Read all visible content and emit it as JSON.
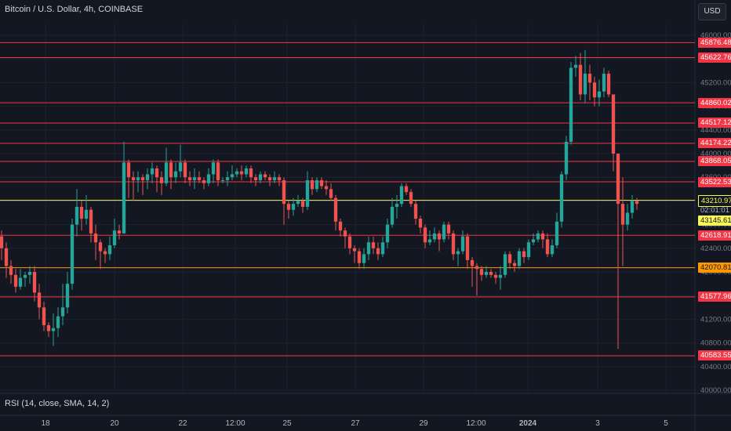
{
  "header": {
    "title": "Bitcoin / U.S. Dollar, 4h, COINBASE"
  },
  "currency_button": "USD",
  "rsi": {
    "label": "RSI (14, close, SMA, 14, 2)"
  },
  "colors": {
    "bg": "#131722",
    "up": "#26a69a",
    "down": "#ef5350",
    "hline": "#f23645",
    "yellow": "#f7f757",
    "orange": "#ff9800"
  },
  "chart_data": {
    "type": "candlestick",
    "title": "Bitcoin / U.S. Dollar, 4h, COINBASE",
    "ylim": [
      40000,
      46200
    ],
    "y_ticks": [
      "46000.00",
      "45600.00",
      "45200.00",
      "44800.00",
      "44400.00",
      "44000.00",
      "43600.00",
      "43200.00",
      "42800.00",
      "42400.00",
      "42000.00",
      "41600.00",
      "41200.00",
      "40800.00",
      "40400.00",
      "40000.00"
    ],
    "x_ticks": [
      "18",
      "20",
      "22",
      "12:00",
      "25",
      "27",
      "29",
      "12:00",
      "2024",
      "3",
      "5"
    ],
    "horizontal_levels": [
      {
        "price": 45876.48,
        "label": "45876.48",
        "style": "red"
      },
      {
        "price": 45622.76,
        "label": "45622.76",
        "style": "red"
      },
      {
        "price": 44860.02,
        "label": "44860.02",
        "style": "red"
      },
      {
        "price": 44517.12,
        "label": "44517.12",
        "style": "red"
      },
      {
        "price": 44174.22,
        "label": "44174.22",
        "style": "red"
      },
      {
        "price": 43868.05,
        "label": "43868.05",
        "style": "red"
      },
      {
        "price": 43522.53,
        "label": "43522.53",
        "style": "red"
      },
      {
        "price": 43210.97,
        "label": "43210.97",
        "style": "yellow"
      },
      {
        "price": 42618.91,
        "label": "42618.91",
        "style": "red"
      },
      {
        "price": 42070.81,
        "label": "42070.81",
        "style": "orange"
      },
      {
        "price": 41577.96,
        "label": "41577.96",
        "style": "red"
      },
      {
        "price": 40583.55,
        "label": "40583.55",
        "style": "red"
      }
    ],
    "current_price": {
      "label": "43145.61",
      "countdown": "02:01:01"
    },
    "candles": [
      [
        42600,
        42400,
        42700,
        42200
      ],
      [
        42400,
        42100,
        42500,
        41900
      ],
      [
        42100,
        41950,
        42200,
        41800
      ],
      [
        41950,
        41750,
        42050,
        41650
      ],
      [
        41750,
        41900,
        42050,
        41700
      ],
      [
        41900,
        41950,
        42000,
        41750
      ],
      [
        41950,
        42000,
        42100,
        41800
      ],
      [
        42000,
        41650,
        42100,
        41500
      ],
      [
        41650,
        41400,
        41800,
        41200
      ],
      [
        41400,
        41100,
        41500,
        41000
      ],
      [
        41100,
        41000,
        41150,
        40900
      ],
      [
        41000,
        41050,
        41300,
        40750
      ],
      [
        41050,
        41250,
        41400,
        40900
      ],
      [
        41250,
        41400,
        41800,
        41100
      ],
      [
        41400,
        41800,
        42000,
        41300
      ],
      [
        41800,
        42800,
        42900,
        41700
      ],
      [
        42800,
        43100,
        43400,
        42600
      ],
      [
        43100,
        42900,
        43200,
        42700
      ],
      [
        42900,
        43050,
        43300,
        42800
      ],
      [
        43050,
        42650,
        43100,
        42500
      ],
      [
        42650,
        42500,
        42800,
        42200
      ],
      [
        42500,
        42350,
        42550,
        42050
      ],
      [
        42350,
        42300,
        42400,
        42150
      ],
      [
        42300,
        42450,
        42600,
        42200
      ],
      [
        42450,
        42700,
        42900,
        42400
      ],
      [
        42700,
        42650,
        42800,
        42550
      ],
      [
        42650,
        43850,
        44200,
        42650
      ],
      [
        43850,
        43600,
        43900,
        43250
      ],
      [
        43600,
        43550,
        43700,
        43200
      ],
      [
        43550,
        43600,
        43700,
        43350
      ],
      [
        43600,
        43550,
        43650,
        43300
      ],
      [
        43550,
        43650,
        43750,
        43400
      ],
      [
        43650,
        43750,
        43850,
        43500
      ],
      [
        43750,
        43600,
        43800,
        43350
      ],
      [
        43600,
        43500,
        43700,
        43300
      ],
      [
        43500,
        43850,
        44100,
        43450
      ],
      [
        43850,
        43600,
        43900,
        43400
      ],
      [
        43600,
        43700,
        43850,
        43500
      ],
      [
        43700,
        43850,
        44150,
        43600
      ],
      [
        43850,
        43600,
        43900,
        43500
      ],
      [
        43600,
        43550,
        43700,
        43450
      ],
      [
        43550,
        43600,
        43750,
        43400
      ],
      [
        43600,
        43550,
        43700,
        43500
      ],
      [
        43550,
        43500,
        43600,
        43400
      ],
      [
        43500,
        43650,
        43750,
        43450
      ],
      [
        43650,
        43850,
        43900,
        43500
      ],
      [
        43850,
        43550,
        43900,
        43450
      ],
      [
        43550,
        43550,
        43600,
        43500
      ],
      [
        43550,
        43600,
        43700,
        43450
      ],
      [
        43600,
        43650,
        43800,
        43550
      ],
      [
        43650,
        43700,
        43750,
        43600
      ],
      [
        43700,
        43650,
        43800,
        43550
      ],
      [
        43650,
        43750,
        43800,
        43600
      ],
      [
        43750,
        43600,
        43800,
        43500
      ],
      [
        43600,
        43550,
        43650,
        43450
      ],
      [
        43550,
        43650,
        43700,
        43500
      ],
      [
        43650,
        43600,
        43700,
        43550
      ],
      [
        43600,
        43550,
        43650,
        43450
      ],
      [
        43550,
        43600,
        43700,
        43500
      ],
      [
        43600,
        43550,
        43650,
        43450
      ],
      [
        43550,
        43150,
        43600,
        42800
      ],
      [
        43150,
        43050,
        43200,
        42900
      ],
      [
        43050,
        43150,
        43250,
        42950
      ],
      [
        43150,
        43200,
        43300,
        43100
      ],
      [
        43200,
        43100,
        43250,
        43000
      ],
      [
        43100,
        43550,
        43700,
        43050
      ],
      [
        43550,
        43400,
        43600,
        43300
      ],
      [
        43400,
        43550,
        43600,
        43350
      ],
      [
        43550,
        43450,
        43600,
        43400
      ],
      [
        43450,
        43400,
        43550,
        43300
      ],
      [
        43400,
        43250,
        43500,
        43200
      ],
      [
        43250,
        42850,
        43300,
        42700
      ],
      [
        42850,
        42700,
        42900,
        42600
      ],
      [
        42700,
        42600,
        42750,
        42400
      ],
      [
        42600,
        42400,
        42650,
        42300
      ],
      [
        42400,
        42350,
        42450,
        42150
      ],
      [
        42350,
        42150,
        42400,
        42050
      ],
      [
        42150,
        42300,
        42400,
        42050
      ],
      [
        42300,
        42500,
        42600,
        42200
      ],
      [
        42500,
        42400,
        42600,
        42300
      ],
      [
        42400,
        42300,
        42500,
        42200
      ],
      [
        42300,
        42500,
        42600,
        42250
      ],
      [
        42500,
        42800,
        42900,
        42400
      ],
      [
        42800,
        43100,
        43250,
        42750
      ],
      [
        43100,
        43150,
        43300,
        42900
      ],
      [
        43150,
        43450,
        43500,
        43100
      ],
      [
        43450,
        43350,
        43500,
        43300
      ],
      [
        43350,
        43150,
        43400,
        43100
      ],
      [
        43150,
        42900,
        43200,
        42800
      ],
      [
        42900,
        42750,
        42950,
        42650
      ],
      [
        42750,
        42500,
        42800,
        42400
      ],
      [
        42500,
        42550,
        42700,
        42450
      ],
      [
        42550,
        42650,
        42750,
        42500
      ],
      [
        42650,
        42550,
        42700,
        42350
      ],
      [
        42550,
        42800,
        42850,
        42500
      ],
      [
        42800,
        42650,
        42850,
        42550
      ],
      [
        42650,
        42300,
        42700,
        42200
      ],
      [
        42300,
        42350,
        42400,
        42100
      ],
      [
        42350,
        42600,
        42700,
        42300
      ],
      [
        42600,
        42200,
        42650,
        42050
      ],
      [
        42200,
        42100,
        42250,
        41750
      ],
      [
        42100,
        42050,
        42150,
        41600
      ],
      [
        42050,
        41950,
        42100,
        41850
      ],
      [
        41950,
        42000,
        42100,
        41900
      ],
      [
        42000,
        41950,
        42050,
        41900
      ],
      [
        41950,
        41900,
        42000,
        41800
      ],
      [
        41900,
        41950,
        42100,
        41700
      ],
      [
        41950,
        42300,
        42350,
        41900
      ],
      [
        42300,
        42150,
        42350,
        42050
      ],
      [
        42150,
        42100,
        42200,
        42000
      ],
      [
        42100,
        42350,
        42400,
        42050
      ],
      [
        42350,
        42250,
        42400,
        42150
      ],
      [
        42250,
        42500,
        42550,
        42200
      ],
      [
        42500,
        42550,
        42650,
        42450
      ],
      [
        42550,
        42650,
        42700,
        42500
      ],
      [
        42650,
        42550,
        42700,
        42400
      ],
      [
        42550,
        42300,
        42650,
        42250
      ],
      [
        42300,
        42450,
        42550,
        42250
      ],
      [
        42450,
        42850,
        43000,
        42400
      ],
      [
        42850,
        43650,
        43700,
        42750
      ],
      [
        43650,
        44200,
        44300,
        43550
      ],
      [
        44200,
        45450,
        45550,
        44150
      ],
      [
        45450,
        45500,
        45650,
        45300
      ],
      [
        45500,
        45000,
        45700,
        44900
      ],
      [
        45000,
        45350,
        45750,
        44850
      ],
      [
        45350,
        45200,
        45500,
        44900
      ],
      [
        45200,
        44950,
        45300,
        44800
      ],
      [
        44950,
        45050,
        45250,
        44800
      ],
      [
        45050,
        45350,
        45450,
        44950
      ],
      [
        45350,
        45000,
        45400,
        44950
      ],
      [
        45000,
        44000,
        45000,
        43700
      ],
      [
        44000,
        43150,
        44000,
        40700
      ],
      [
        43150,
        42800,
        43600,
        42100
      ],
      [
        42800,
        43000,
        43150,
        42700
      ],
      [
        43000,
        43200,
        43300,
        42900
      ],
      [
        43200,
        43150,
        43250,
        43050
      ]
    ]
  }
}
